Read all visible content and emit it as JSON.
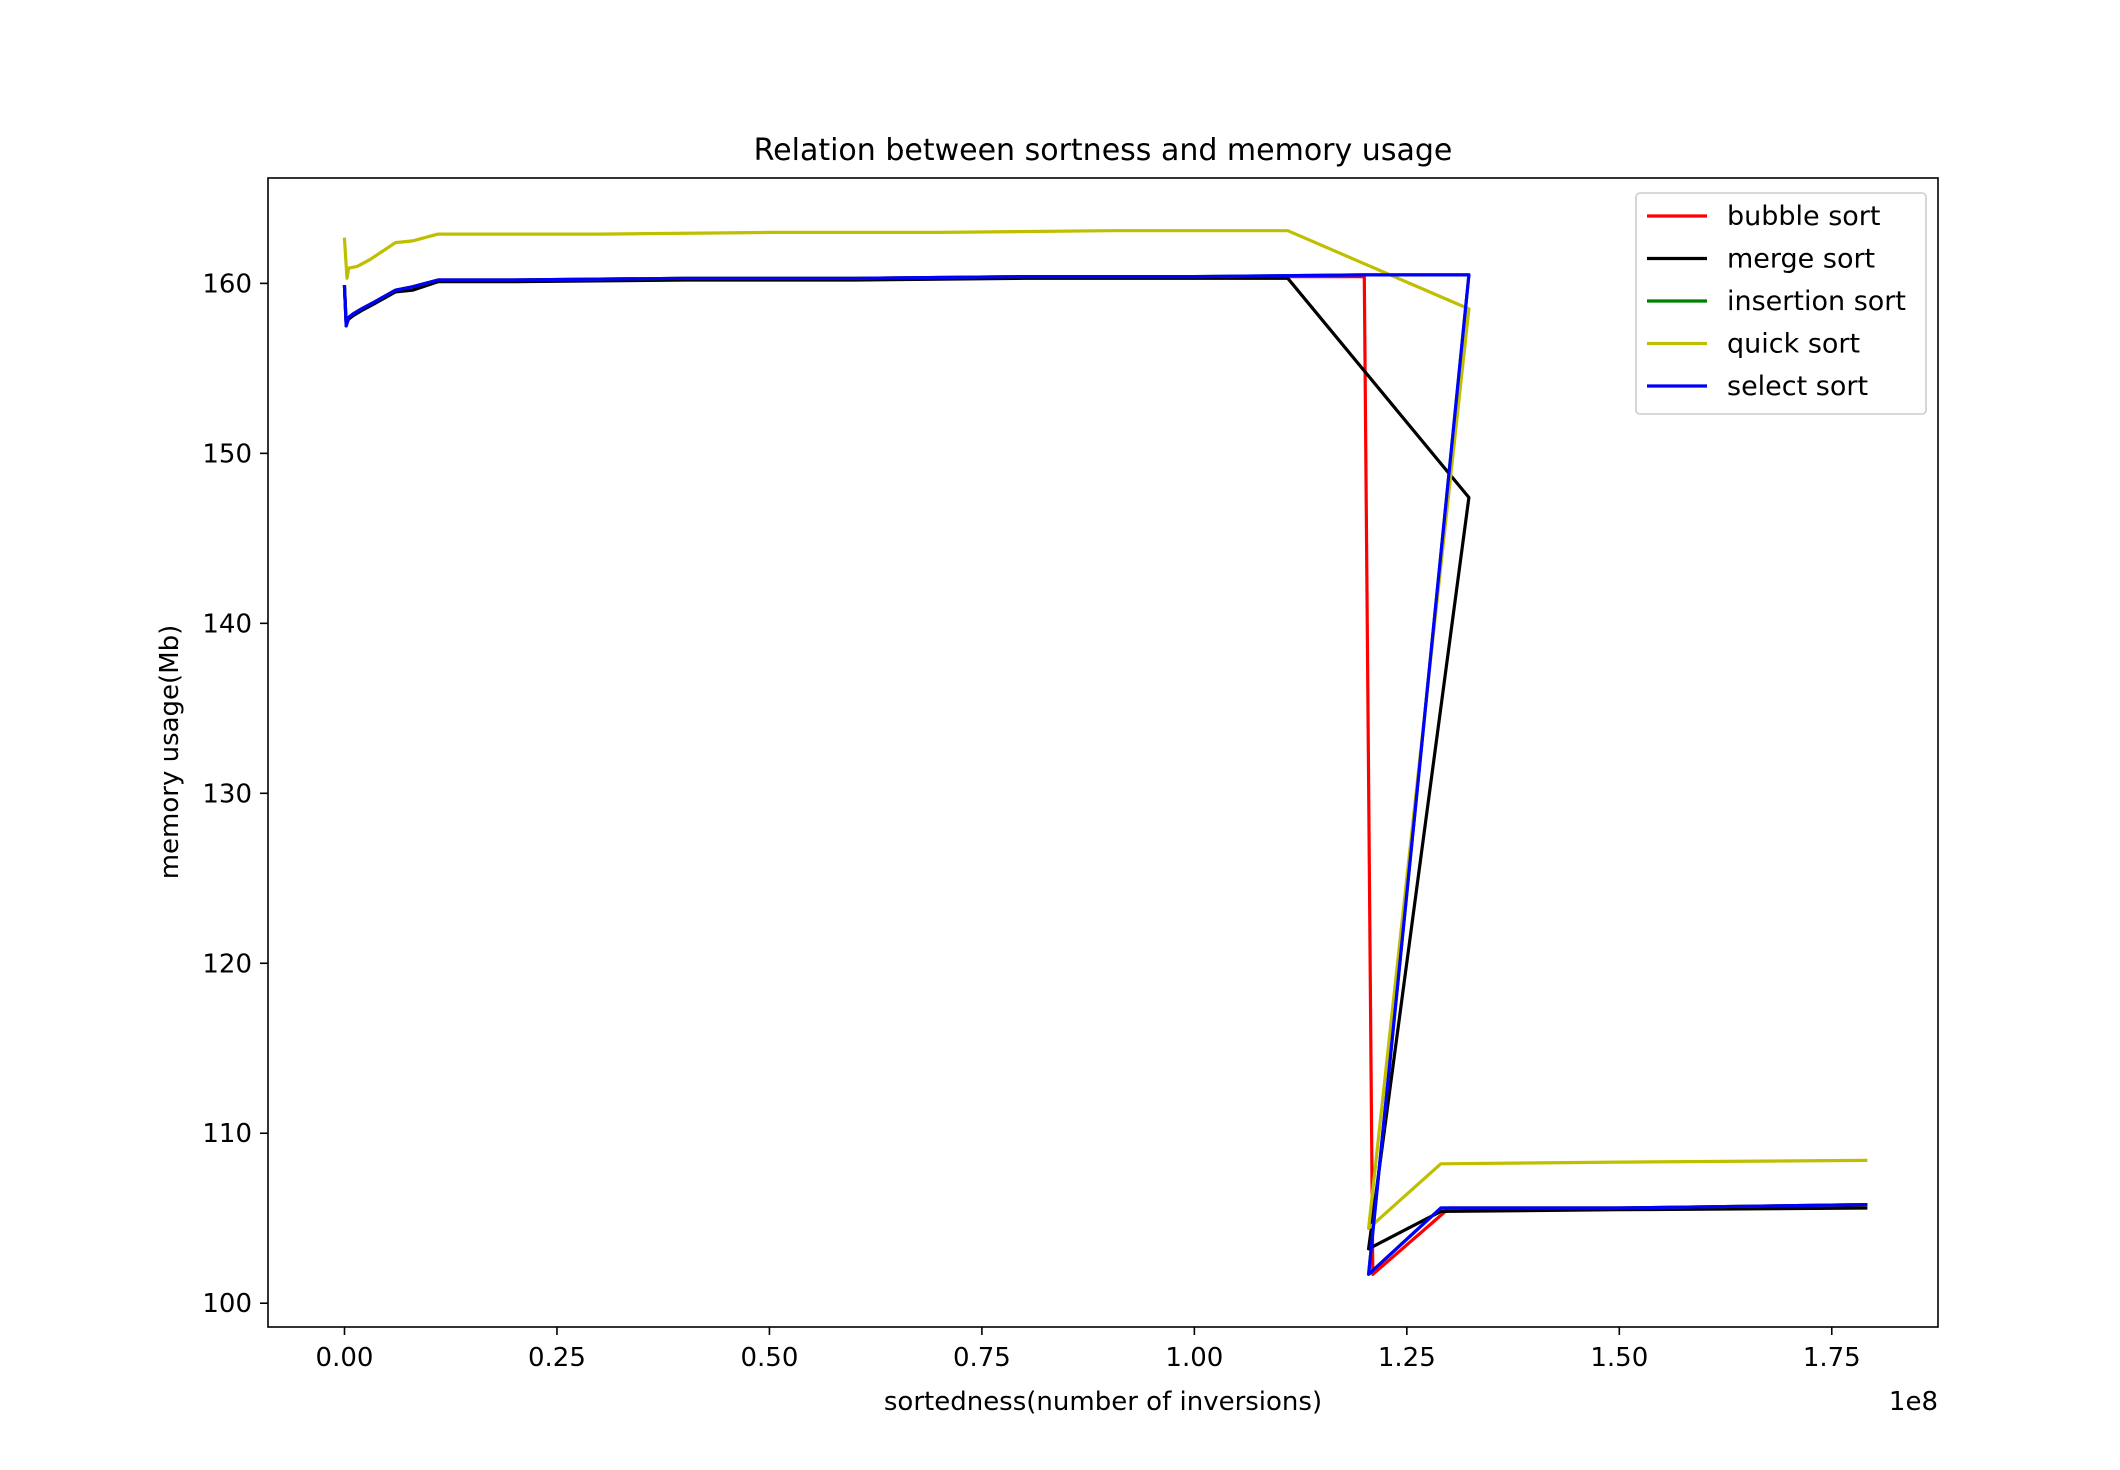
{
  "chart_data": {
    "type": "line",
    "title": "Relation between sortness and memory usage",
    "xlabel": "sortedness(number of inversions)",
    "ylabel": "memory usage(Mb)",
    "x_offset_text": "1e8",
    "xlim": [
      -0.09,
      1.875
    ],
    "ylim": [
      98.6,
      166.2
    ],
    "xticks": [
      0.0,
      0.25,
      0.5,
      0.75,
      1.0,
      1.25,
      1.5,
      1.75
    ],
    "xtick_labels": [
      "0.00",
      "0.25",
      "0.50",
      "0.75",
      "1.00",
      "1.25",
      "1.50",
      "1.75"
    ],
    "yticks": [
      100,
      110,
      120,
      130,
      140,
      150,
      160
    ],
    "ytick_labels": [
      "100",
      "110",
      "120",
      "130",
      "140",
      "150",
      "160"
    ],
    "grid": false,
    "legend_position": "top-right",
    "series": [
      {
        "name": "bubble sort",
        "color": "#ff0000",
        "x": [
          0.0,
          0.002,
          0.005,
          0.01,
          0.02,
          0.035,
          0.06,
          0.08,
          0.11,
          0.2,
          0.4,
          0.6,
          0.8,
          1.0,
          1.2,
          1.21,
          1.3,
          1.5,
          1.79
        ],
        "y": [
          159.8,
          157.5,
          158.0,
          158.2,
          158.5,
          158.9,
          159.6,
          159.8,
          160.2,
          160.2,
          160.3,
          160.3,
          160.4,
          160.4,
          160.4,
          101.7,
          105.6,
          105.6,
          105.8
        ]
      },
      {
        "name": "merge sort",
        "color": "#000000",
        "x": [
          0.0,
          0.002,
          0.005,
          0.01,
          0.02,
          0.035,
          0.06,
          0.08,
          0.11,
          0.2,
          0.4,
          0.6,
          0.8,
          1.0,
          1.11,
          1.323,
          1.205,
          1.29,
          1.5,
          1.79
        ],
        "y": [
          159.8,
          157.6,
          157.9,
          158.1,
          158.4,
          158.8,
          159.5,
          159.6,
          160.1,
          160.1,
          160.2,
          160.2,
          160.3,
          160.3,
          160.3,
          147.4,
          103.2,
          105.4,
          105.5,
          105.6
        ]
      },
      {
        "name": "insertion sort",
        "color": "#008000",
        "x": [
          0.0,
          0.002,
          0.005,
          0.01,
          0.02,
          0.035,
          0.06,
          0.08,
          0.11,
          0.2,
          0.4,
          0.6,
          0.8,
          1.0,
          1.2,
          1.323,
          1.205,
          1.29,
          1.5,
          1.79
        ],
        "y": [
          159.8,
          157.5,
          158.0,
          158.2,
          158.5,
          158.9,
          159.6,
          159.8,
          160.2,
          160.2,
          160.3,
          160.3,
          160.4,
          160.4,
          160.5,
          160.5,
          101.7,
          105.6,
          105.6,
          105.8
        ]
      },
      {
        "name": "quick sort",
        "color": "#bfbf00",
        "x": [
          0.0,
          0.003,
          0.005,
          0.015,
          0.03,
          0.06,
          0.08,
          0.11,
          0.3,
          0.5,
          0.7,
          0.9,
          1.0,
          1.11,
          1.323,
          1.205,
          1.29,
          1.5,
          1.79
        ],
        "y": [
          162.6,
          160.3,
          160.9,
          161.0,
          161.4,
          162.4,
          162.5,
          162.9,
          162.9,
          163.0,
          163.0,
          163.1,
          163.1,
          163.1,
          158.5,
          104.4,
          108.2,
          108.3,
          108.4
        ]
      },
      {
        "name": "select sort",
        "color": "#0000ff",
        "x": [
          0.0,
          0.002,
          0.005,
          0.01,
          0.02,
          0.035,
          0.06,
          0.08,
          0.11,
          0.2,
          0.4,
          0.6,
          0.8,
          1.0,
          1.2,
          1.323,
          1.205,
          1.29,
          1.5,
          1.79
        ],
        "y": [
          159.8,
          157.5,
          158.0,
          158.2,
          158.5,
          158.9,
          159.6,
          159.8,
          160.2,
          160.2,
          160.3,
          160.3,
          160.4,
          160.4,
          160.5,
          160.5,
          101.7,
          105.6,
          105.6,
          105.8
        ]
      }
    ]
  }
}
